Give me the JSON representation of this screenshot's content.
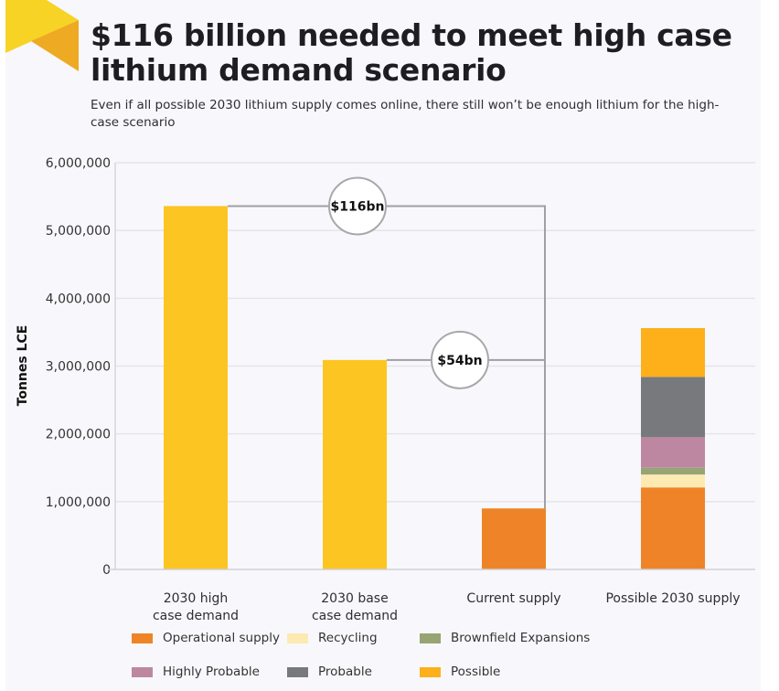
{
  "header": {
    "title": "$116 billion needed to meet high case lithium demand scenario",
    "subtitle": "Even if all possible 2030 lithium supply comes online, there still won’t be enough lithium for the high-case scenario"
  },
  "colors": {
    "ribbon_light": "#f7d326",
    "ribbon_dark": "#edaa22",
    "demand": "#fdc521",
    "operational": "#ee8427",
    "recycling": "#fdeab2",
    "brownfield": "#97a473",
    "highly_probable": "#bd87a2",
    "probable": "#77797d",
    "possible": "#fdb01a",
    "grid": "#e4e4ea",
    "connector": "#a0a0a4"
  },
  "chart_data": {
    "type": "bar",
    "title": "$116 billion needed to meet high case lithium demand scenario",
    "subtitle": "Even if all possible 2030 lithium supply comes online, there still won’t be enough lithium for the high-case scenario",
    "xlabel": "",
    "ylabel": "Tonnes LCE",
    "ylim": [
      0,
      6000000
    ],
    "yticks": [
      0,
      1000000,
      2000000,
      3000000,
      4000000,
      5000000,
      6000000
    ],
    "ytick_labels": [
      "0",
      "1,000,000",
      "2,000,000",
      "3,000,000",
      "4,000,000",
      "5,000,000",
      "6,000,000"
    ],
    "grid": true,
    "stacked": true,
    "categories": [
      [
        "2030 high",
        "case demand"
      ],
      [
        "2030 base",
        "case demand"
      ],
      [
        "Current supply"
      ],
      [
        "Possible 2030 supply"
      ]
    ],
    "series": [
      {
        "name": "Demand",
        "color_key": "demand",
        "in_legend": false,
        "values": [
          5360000,
          3090000,
          0,
          0
        ]
      },
      {
        "name": "Operational supply",
        "color_key": "operational",
        "in_legend": true,
        "values": [
          0,
          0,
          900000,
          1210000
        ]
      },
      {
        "name": "Recycling",
        "color_key": "recycling",
        "in_legend": true,
        "values": [
          0,
          0,
          0,
          190000
        ]
      },
      {
        "name": "Brownfield Expansions",
        "color_key": "brownfield",
        "in_legend": true,
        "values": [
          0,
          0,
          0,
          100000
        ]
      },
      {
        "name": "Highly Probable",
        "color_key": "highly_probable",
        "in_legend": true,
        "values": [
          0,
          0,
          0,
          450000
        ]
      },
      {
        "name": "Probable",
        "color_key": "probable",
        "in_legend": true,
        "values": [
          0,
          0,
          0,
          890000
        ]
      },
      {
        "name": "Possible",
        "color_key": "possible",
        "in_legend": true,
        "values": [
          0,
          0,
          0,
          720000
        ]
      }
    ],
    "annotations": [
      {
        "label": "$116bn",
        "from_category": 0,
        "to_category": 2,
        "level": 5360000
      },
      {
        "label": "$54bn",
        "from_category": 1,
        "to_category": 2,
        "level": 3090000
      }
    ],
    "legend_position": "bottom",
    "legend_order": [
      "Operational supply",
      "Recycling",
      "Brownfield Expansions",
      "Highly Probable",
      "Probable",
      "Possible"
    ]
  }
}
